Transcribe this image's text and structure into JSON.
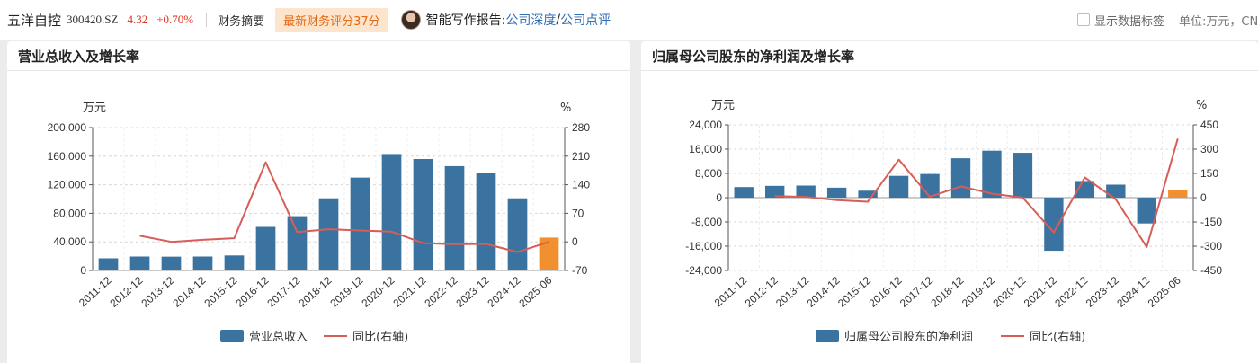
{
  "header": {
    "stock_name": "五洋自控",
    "stock_code": "300420.SZ",
    "price": "4.32",
    "change": "+0.70%",
    "summary_tab": "财务摘要",
    "score_badge": "最新财务评分37分",
    "report_label": "智能写作报告:",
    "report_link_1": "公司深度",
    "report_slash": "/",
    "report_link_2": "公司点评",
    "show_labels": "显示数据标签",
    "unit": "单位:万元，CN"
  },
  "colors": {
    "bar": "#3b73a0",
    "bar_latest": "#f0902e",
    "line": "#d75d58",
    "price_up": "#e0321e",
    "link": "#2f6db5"
  },
  "chart_data": [
    {
      "type": "bar",
      "title": "营业总收入及增长率",
      "left_unit": "万元",
      "right_unit": "%",
      "categories": [
        "2011-12",
        "2012-12",
        "2013-12",
        "2014-12",
        "2015-12",
        "2016-12",
        "2017-12",
        "2018-12",
        "2019-12",
        "2020-12",
        "2021-12",
        "2022-12",
        "2023-12",
        "2024-12",
        "2025-06"
      ],
      "left_ticks": [
        0,
        40000,
        80000,
        120000,
        160000,
        200000
      ],
      "left_tick_labels": [
        "0",
        "40,000",
        "80,000",
        "120,000",
        "160,000",
        "200,000"
      ],
      "right_ticks": [
        -70,
        0,
        70,
        140,
        210,
        280
      ],
      "right_tick_labels": [
        "-70",
        "0",
        "70",
        "140",
        "210",
        "280"
      ],
      "ylim_left": [
        0,
        200000
      ],
      "ylim_right": [
        -70,
        280
      ],
      "series": [
        {
          "name": "营业总收入",
          "kind": "bar",
          "axis": "left",
          "values": [
            17000,
            19500,
            19300,
            19500,
            21000,
            61000,
            76000,
            101000,
            130000,
            163000,
            156000,
            146000,
            137000,
            101000,
            46000
          ]
        },
        {
          "name": "同比(右轴)",
          "kind": "line",
          "axis": "right",
          "values": [
            null,
            15,
            0,
            5,
            9,
            195,
            24,
            31,
            28,
            25,
            -3,
            -6,
            -5,
            -25,
            0
          ]
        }
      ],
      "grid": true,
      "legend_position": "bottom"
    },
    {
      "type": "bar",
      "title": "归属母公司股东的净利润及增长率",
      "left_unit": "万元",
      "right_unit": "%",
      "categories": [
        "2011-12",
        "2012-12",
        "2013-12",
        "2014-12",
        "2015-12",
        "2016-12",
        "2017-12",
        "2018-12",
        "2019-12",
        "2020-12",
        "2021-12",
        "2022-12",
        "2023-12",
        "2024-12",
        "2025-06"
      ],
      "left_ticks": [
        -24000,
        -16000,
        -8000,
        0,
        8000,
        16000,
        24000
      ],
      "left_tick_labels": [
        "-24,000",
        "-16,000",
        "-8,000",
        "0",
        "8,000",
        "16,000",
        "24,000"
      ],
      "right_ticks": [
        -450,
        -300,
        -150,
        0,
        150,
        300,
        450
      ],
      "right_tick_labels": [
        "-450",
        "-300",
        "-150",
        "0",
        "150",
        "300",
        "450"
      ],
      "ylim_left": [
        -24000,
        24000
      ],
      "ylim_right": [
        -450,
        450
      ],
      "series": [
        {
          "name": "归属母公司股东的净利润",
          "kind": "bar",
          "axis": "left",
          "values": [
            3500,
            3900,
            4000,
            3300,
            2300,
            7200,
            7800,
            13000,
            15500,
            14800,
            -17500,
            5500,
            4300,
            -8500,
            2500
          ]
        },
        {
          "name": "同比(右轴)",
          "kind": "line",
          "axis": "right",
          "values": [
            null,
            10,
            5,
            -15,
            -25,
            235,
            5,
            70,
            25,
            0,
            -215,
            125,
            -10,
            -305,
            365
          ]
        }
      ],
      "grid": true,
      "legend_position": "bottom"
    }
  ]
}
